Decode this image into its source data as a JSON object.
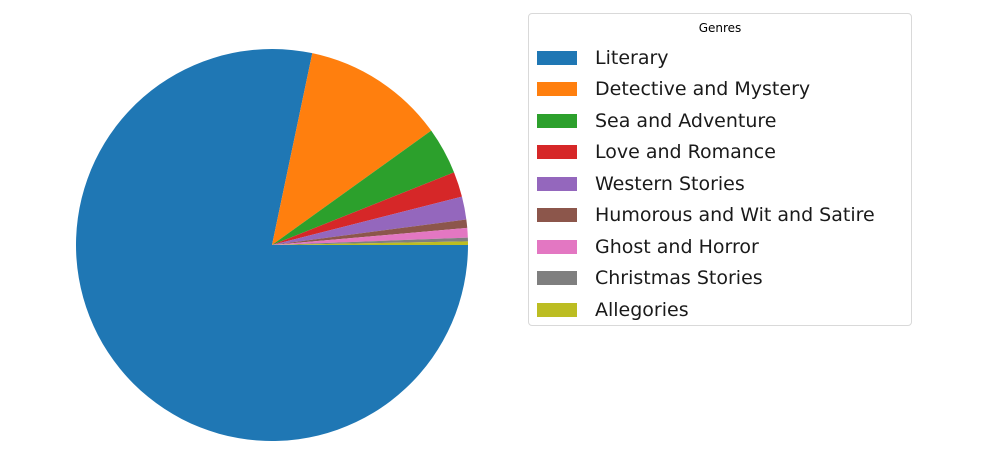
{
  "chart_data": {
    "type": "pie",
    "title": "",
    "legend": {
      "title": "Genres",
      "placement": "right"
    },
    "start_angle_deg": 0,
    "direction": "clockwise",
    "slices": [
      {
        "label": "Literary",
        "value": 79.0,
        "color": "#1f77b4"
      },
      {
        "label": "Detective and Mystery",
        "value": 11.9,
        "color": "#ff7f0e"
      },
      {
        "label": "Sea and Adventure",
        "value": 3.9,
        "color": "#2ca02c"
      },
      {
        "label": "Love and Romance",
        "value": 2.1,
        "color": "#d62728"
      },
      {
        "label": "Western Stories",
        "value": 1.9,
        "color": "#9467bd"
      },
      {
        "label": "Humorous and Wit and Satire",
        "value": 0.7,
        "color": "#8c564b"
      },
      {
        "label": "Ghost and Horror",
        "value": 0.8,
        "color": "#e377c2"
      },
      {
        "label": "Christmas Stories",
        "value": 0.3,
        "color": "#7f7f7f"
      },
      {
        "label": "Allegories",
        "value": 0.3,
        "color": "#bcbd22"
      }
    ]
  }
}
